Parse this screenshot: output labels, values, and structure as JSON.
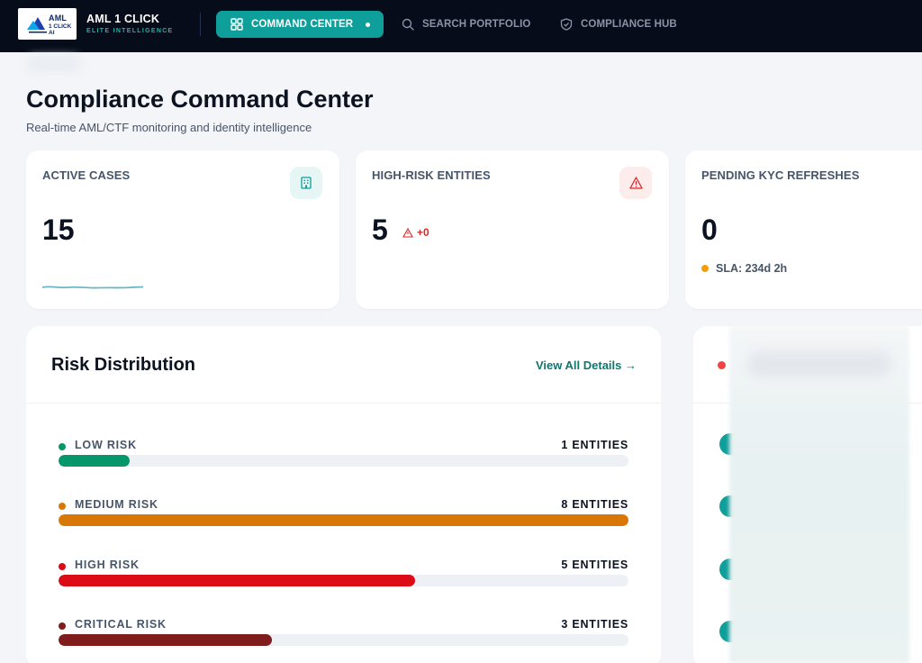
{
  "nav": {
    "logo_line1": "AML",
    "logo_line2": "1 CLICK AI",
    "brand_title": "AML 1 CLICK",
    "brand_sub": "ELITE INTELLIGENCE",
    "items": [
      {
        "label": "COMMAND CENTER",
        "icon": "grid-icon",
        "active": true
      },
      {
        "label": "SEARCH PORTFOLIO",
        "icon": "search-icon",
        "active": false
      },
      {
        "label": "COMPLIANCE HUB",
        "icon": "shield-icon",
        "active": false
      }
    ]
  },
  "header": {
    "title": "Compliance Command Center",
    "subtitle": "Real-time AML/CTF monitoring and identity intelligence"
  },
  "stats": {
    "active_cases": {
      "label": "ACTIVE CASES",
      "value": "15",
      "icon": "building-icon"
    },
    "high_risk": {
      "label": "HIGH-RISK ENTITIES",
      "value": "5",
      "delta": "+0",
      "icon": "warning-icon"
    },
    "pending_kyc": {
      "label": "PENDING KYC REFRESHES",
      "value": "0",
      "sla": "SLA: 234d 2h"
    }
  },
  "risk": {
    "title": "Risk Distribution",
    "link": "View All Details →",
    "rows": [
      {
        "name": "LOW RISK",
        "count": "1 ENTITIES",
        "fraction": 0.125,
        "color": "#059669"
      },
      {
        "name": "MEDIUM RISK",
        "count": "8 ENTITIES",
        "fraction": 1.0,
        "color": "#d97706"
      },
      {
        "name": "HIGH RISK",
        "count": "5 ENTITIES",
        "fraction": 0.625,
        "color": "#dc0c17"
      },
      {
        "name": "CRITICAL RISK",
        "count": "3 ENTITIES",
        "fraction": 0.375,
        "color": "#7f1d1d"
      }
    ]
  },
  "right_panel": {
    "fragments": [
      "d:",
      "d:",
      "ed",
      "d:"
    ]
  },
  "colors": {
    "accent": "#0e9f9a",
    "nav_bg": "#070c1a",
    "danger": "#dc2626",
    "warning": "#f59e0b"
  }
}
